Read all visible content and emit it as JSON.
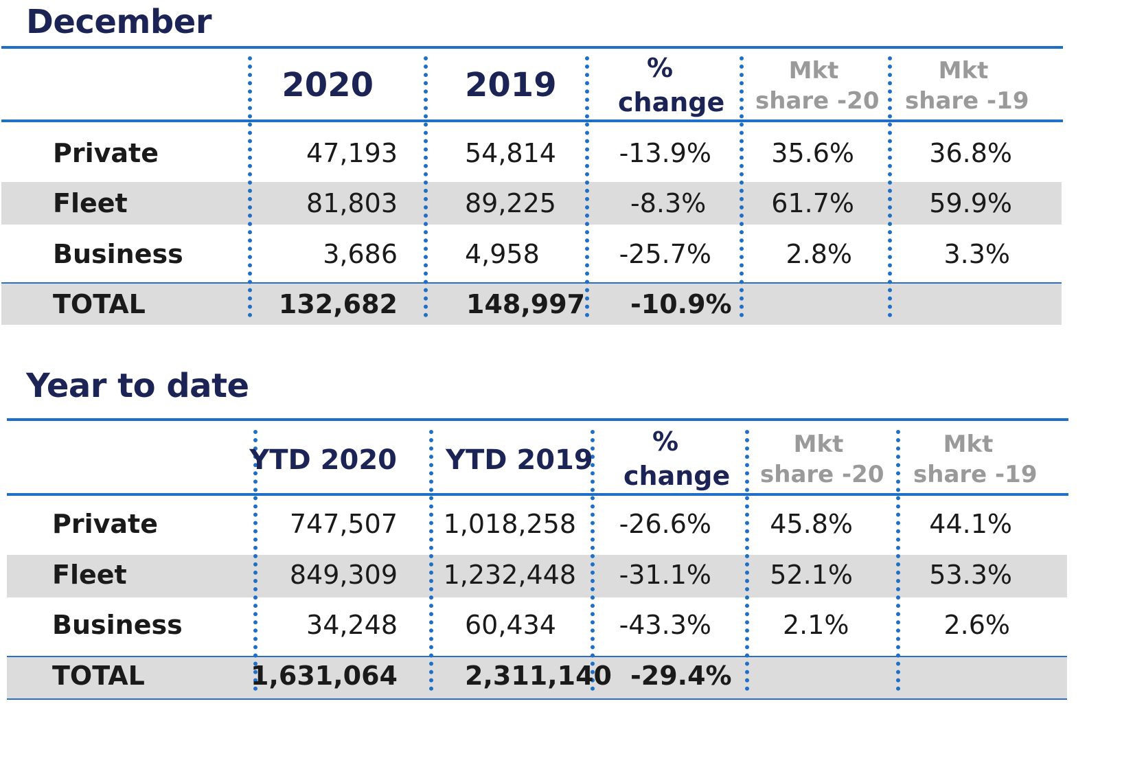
{
  "sections": [
    {
      "title": "December",
      "headers": {
        "c1": "2020",
        "c2": "2019",
        "c3a": "%",
        "c3b": "change",
        "c4a": "Mkt",
        "c4b": "share -20",
        "c5a": "Mkt",
        "c5b": "share -19"
      },
      "rows": [
        {
          "label": "Private",
          "c1": "47,193",
          "c2": "54,814",
          "c3": "-13.9%",
          "c4": "35.6%",
          "c5": "36.8%"
        },
        {
          "label": "Fleet",
          "c1": "81,803",
          "c2": "89,225",
          "c3": "-8.3%",
          "c4": "61.7%",
          "c5": "59.9%"
        },
        {
          "label": "Business",
          "c1": "3,686",
          "c2": "4,958",
          "c3": "-25.7%",
          "c4": "2.8%",
          "c5": "3.3%"
        }
      ],
      "total": {
        "label": "TOTAL",
        "c1": "132,682",
        "c2": "148,997",
        "c3": "-10.9%"
      }
    },
    {
      "title": "Year to date",
      "headers": {
        "c1": "YTD 2020",
        "c2": "YTD 2019",
        "c3a": "%",
        "c3b": "change",
        "c4a": "Mkt",
        "c4b": "share -20",
        "c5a": "Mkt",
        "c5b": "share -19"
      },
      "rows": [
        {
          "label": "Private",
          "c1": "747,507",
          "c2": "1,018,258",
          "c3": "-26.6%",
          "c4": "45.8%",
          "c5": "44.1%"
        },
        {
          "label": "Fleet",
          "c1": "849,309",
          "c2": "1,232,448",
          "c3": "-31.1%",
          "c4": "52.1%",
          "c5": "53.3%"
        },
        {
          "label": "Business",
          "c1": "34,248",
          "c2": "60,434",
          "c3": "-43.3%",
          "c4": "2.1%",
          "c5": "2.6%"
        }
      ],
      "total": {
        "label": "TOTAL",
        "c1": "1,631,064",
        "c2": "2,311,140",
        "c3": "-29.4%"
      }
    }
  ]
}
